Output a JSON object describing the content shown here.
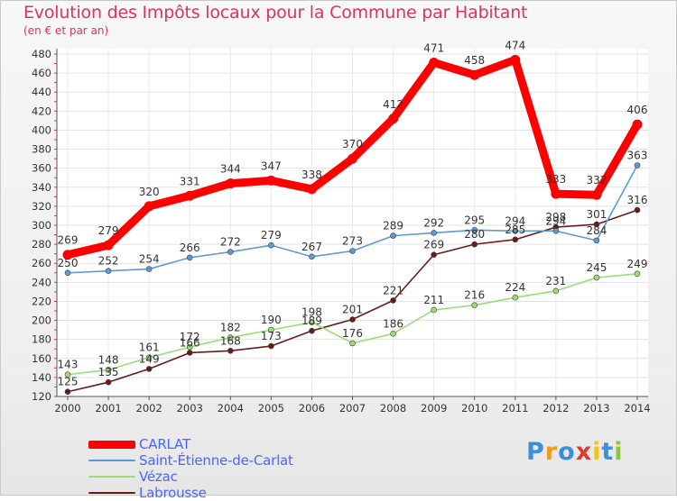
{
  "title": "Evolution des Impôts locaux pour la Commune par Habitant",
  "subtitle": "(en € et par an)",
  "logo_text": "Proxiti",
  "chart_data": {
    "type": "line",
    "title": "Evolution des Impôts locaux pour la Commune par Habitant",
    "subtitle": "(en € et par an)",
    "xlabel": "",
    "ylabel": "",
    "x": [
      "2000",
      "2001",
      "2002",
      "2003",
      "2004",
      "2005",
      "2006",
      "2007",
      "2008",
      "2009",
      "2010",
      "2011",
      "2012",
      "2013",
      "2014"
    ],
    "ylim": [
      120,
      480
    ],
    "yticks": [
      120,
      140,
      160,
      180,
      200,
      220,
      240,
      260,
      280,
      300,
      320,
      340,
      360,
      380,
      400,
      420,
      440,
      460,
      480
    ],
    "grid": true,
    "legend_position": "bottom-left",
    "series": [
      {
        "name": "CARLAT",
        "color": "#ff0000",
        "values": [
          269,
          279,
          320,
          331,
          344,
          347,
          338,
          370,
          412,
          471,
          458,
          474,
          333,
          332,
          406
        ]
      },
      {
        "name": "Saint-Étienne-de-Carlat",
        "color": "#5a9bd5",
        "values": [
          250,
          252,
          254,
          266,
          272,
          279,
          267,
          273,
          289,
          292,
          295,
          294,
          294,
          284,
          363
        ]
      },
      {
        "name": "Vézac",
        "color": "#99dd77",
        "values": [
          143,
          148,
          161,
          172,
          182,
          190,
          198,
          176,
          186,
          211,
          216,
          224,
          231,
          245,
          249
        ]
      },
      {
        "name": "Labrousse",
        "color": "#6b1a1a",
        "values": [
          125,
          135,
          149,
          166,
          168,
          173,
          189,
          201,
          221,
          269,
          280,
          285,
          298,
          301,
          316
        ]
      }
    ]
  }
}
